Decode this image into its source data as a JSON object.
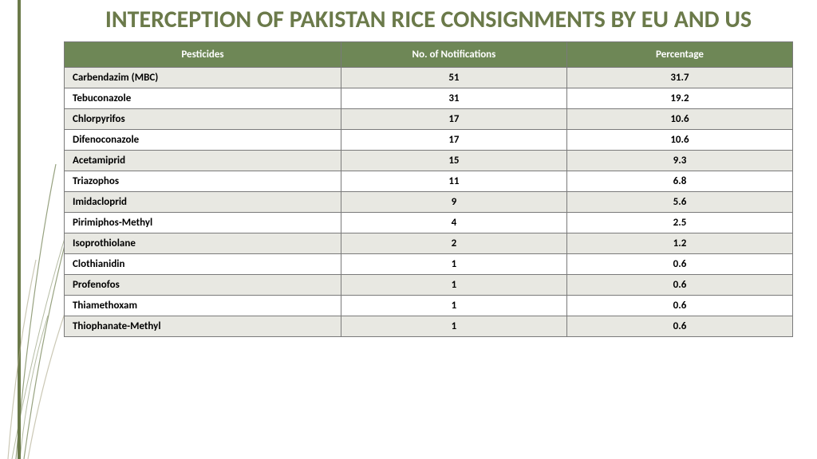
{
  "title": "INTERCEPTION OF PAKISTAN RICE CONSIGNMENTS BY EU AND US",
  "title_color": "#6b7a4a",
  "title_fontsize": 30,
  "table": {
    "type": "table",
    "header_bg": "#6e8756",
    "header_text_color": "#ffffff",
    "row_alt_bg": "#e8e8e2",
    "row_bg": "#ffffff",
    "border_color": "#7a7a7a",
    "col_widths_pct": [
      38,
      31,
      31
    ],
    "columns": [
      "Pesticides",
      "No. of Notifications",
      "Percentage"
    ],
    "rows": [
      [
        "Carbendazim (MBC)",
        "51",
        "31.7"
      ],
      [
        "Tebuconazole",
        "31",
        "19.2"
      ],
      [
        "Chlorpyrifos",
        "17",
        "10.6"
      ],
      [
        "Difenoconazole",
        "17",
        "10.6"
      ],
      [
        "Acetamiprid",
        "15",
        "9.3"
      ],
      [
        "Triazophos",
        "11",
        "6.8"
      ],
      [
        "Imidacloprid",
        "9",
        "5.6"
      ],
      [
        "Pirimiphos-Methyl",
        "4",
        "2.5"
      ],
      [
        "Isoprothiolane",
        "2",
        "1.2"
      ],
      [
        "Clothianidin",
        "1",
        "0.6"
      ],
      [
        "Profenofos",
        "1",
        "0.6"
      ],
      [
        "Thiamethoxam",
        "1",
        "0.6"
      ],
      [
        "Thiophanate-Methyl",
        "1",
        "0.6"
      ]
    ]
  },
  "decoration": {
    "bar_color": "#6b7a4a",
    "curve_color": "#6b7a4a"
  }
}
